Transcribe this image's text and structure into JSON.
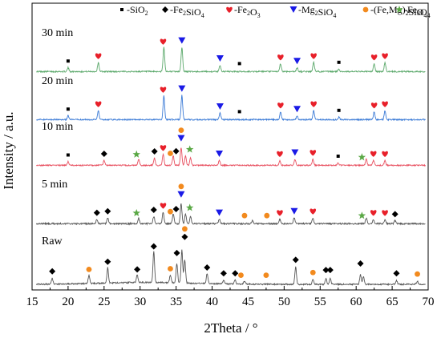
{
  "chart_data": {
    "type": "line",
    "title": "",
    "xlabel": "2Theta / °",
    "ylabel": "Intensity / a.u.",
    "xlim": [
      15,
      70
    ],
    "xticks": [
      15,
      20,
      25,
      30,
      35,
      40,
      45,
      50,
      55,
      60,
      65,
      70
    ],
    "grid": false,
    "legend": {
      "position": "top",
      "entries": [
        {
          "phase": "SiO2",
          "marker": "square",
          "color": "#000000",
          "label_pre": "-SiO",
          "sub": "2",
          "label_post": ""
        },
        {
          "phase": "Fe2SiO4",
          "marker": "diamond",
          "color": "#000000",
          "label_pre": "-Fe",
          "sub": "2",
          "label_post": "SiO",
          "sub2": "4"
        },
        {
          "phase": "Fe2O3",
          "marker": "heart",
          "color": "#e8202a",
          "label_pre": "-Fe",
          "sub": "2",
          "label_post": "O",
          "sub2": "3"
        },
        {
          "phase": "Mg2SiO4",
          "marker": "triangle-down",
          "color": "#1a1ae6",
          "label_pre": "-Mg",
          "sub": "2",
          "label_post": "SiO",
          "sub2": "4"
        },
        {
          "phase": "(Fe,Mg)2SiO4",
          "marker": "circle",
          "color": "#f28a1e",
          "label_pre": "-(Fe,Mg)",
          "sub": "2",
          "label_post": "SiO",
          "sub2": "4"
        },
        {
          "phase": "Fe3O4",
          "marker": "star",
          "color": "#5aa845",
          "label_pre": "-Fe",
          "sub": "3",
          "label_post": "O",
          "sub2": "4"
        }
      ]
    },
    "series": [
      {
        "name": "30 min",
        "color": "#5aa86a",
        "peaks": [
          [
            20.0,
            0.15
          ],
          [
            24.2,
            0.35
          ],
          [
            33.3,
            0.95
          ],
          [
            35.8,
            0.95
          ],
          [
            41.1,
            0.25
          ],
          [
            49.5,
            0.3
          ],
          [
            51.8,
            0.15
          ],
          [
            54.1,
            0.35
          ],
          [
            57.6,
            0.1
          ],
          [
            62.5,
            0.3
          ],
          [
            64.0,
            0.35
          ]
        ],
        "markers": [
          {
            "phase": "SiO2",
            "x": 20.0
          },
          {
            "phase": "Fe2O3",
            "x": 24.2
          },
          {
            "phase": "Fe2O3",
            "x": 33.2
          },
          {
            "phase": "Mg2SiO4",
            "x": 35.8
          },
          {
            "phase": "Mg2SiO4",
            "x": 41.1
          },
          {
            "phase": "SiO2",
            "x": 43.8
          },
          {
            "phase": "Fe2O3",
            "x": 49.5
          },
          {
            "phase": "Mg2SiO4",
            "x": 51.8
          },
          {
            "phase": "Fe2O3",
            "x": 54.1
          },
          {
            "phase": "SiO2",
            "x": 57.6
          },
          {
            "phase": "Fe2O3",
            "x": 62.5
          },
          {
            "phase": "Fe2O3",
            "x": 64.0
          }
        ]
      },
      {
        "name": "20 min",
        "color": "#3a7ad6",
        "peaks": [
          [
            20.0,
            0.15
          ],
          [
            24.2,
            0.35
          ],
          [
            33.3,
            0.95
          ],
          [
            35.8,
            0.95
          ],
          [
            41.1,
            0.25
          ],
          [
            49.5,
            0.3
          ],
          [
            51.8,
            0.15
          ],
          [
            54.1,
            0.35
          ],
          [
            57.6,
            0.1
          ],
          [
            62.5,
            0.3
          ],
          [
            64.0,
            0.35
          ]
        ],
        "markers": [
          {
            "phase": "SiO2",
            "x": 20.0
          },
          {
            "phase": "Fe2O3",
            "x": 24.2
          },
          {
            "phase": "Fe2O3",
            "x": 33.2
          },
          {
            "phase": "Mg2SiO4",
            "x": 35.8
          },
          {
            "phase": "Mg2SiO4",
            "x": 41.1
          },
          {
            "phase": "SiO2",
            "x": 43.8
          },
          {
            "phase": "Fe2O3",
            "x": 49.5
          },
          {
            "phase": "Mg2SiO4",
            "x": 51.8
          },
          {
            "phase": "Fe2O3",
            "x": 54.1
          },
          {
            "phase": "SiO2",
            "x": 57.6
          },
          {
            "phase": "Fe2O3",
            "x": 62.5
          },
          {
            "phase": "Fe2O3",
            "x": 64.0
          }
        ]
      },
      {
        "name": "10 min",
        "color": "#e85060",
        "peaks": [
          [
            20.0,
            0.15
          ],
          [
            25.0,
            0.2
          ],
          [
            29.8,
            0.25
          ],
          [
            32.0,
            0.3
          ],
          [
            33.2,
            0.45
          ],
          [
            34.6,
            0.4
          ],
          [
            35.7,
            0.75
          ],
          [
            36.3,
            0.4
          ],
          [
            37.0,
            0.3
          ],
          [
            41.0,
            0.2
          ],
          [
            49.4,
            0.2
          ],
          [
            51.5,
            0.25
          ],
          [
            54.0,
            0.25
          ],
          [
            57.5,
            0.1
          ],
          [
            61.4,
            0.25
          ],
          [
            62.4,
            0.2
          ],
          [
            64.0,
            0.2
          ]
        ],
        "markers": [
          {
            "phase": "SiO2",
            "x": 20.0
          },
          {
            "phase": "Fe2SiO4",
            "x": 25.0
          },
          {
            "phase": "Fe3O4",
            "x": 29.5
          },
          {
            "phase": "Fe2SiO4",
            "x": 32.0
          },
          {
            "phase": "Fe2O3",
            "x": 33.2
          },
          {
            "phase": "(Fe,Mg)2SiO4",
            "x": 34.2
          },
          {
            "phase": "Fe2SiO4",
            "x": 35.0
          },
          {
            "phase": "Mg2SiO4",
            "x": 35.7
          },
          {
            "phase": "(Fe,Mg)2SiO4",
            "x": 35.7
          },
          {
            "phase": "Fe3O4",
            "x": 36.9
          },
          {
            "phase": "Mg2SiO4",
            "x": 41.0
          },
          {
            "phase": "Fe2O3",
            "x": 49.4
          },
          {
            "phase": "Mg2SiO4",
            "x": 51.5
          },
          {
            "phase": "Fe2O3",
            "x": 54.0
          },
          {
            "phase": "SiO2",
            "x": 57.5
          },
          {
            "phase": "Fe3O4",
            "x": 60.8
          },
          {
            "phase": "Fe2O3",
            "x": 62.4
          },
          {
            "phase": "Fe2O3",
            "x": 64.0
          }
        ]
      },
      {
        "name": "5 min",
        "color": "#555555",
        "peaks": [
          [
            24.0,
            0.15
          ],
          [
            25.5,
            0.2
          ],
          [
            29.8,
            0.2
          ],
          [
            31.9,
            0.25
          ],
          [
            33.2,
            0.4
          ],
          [
            34.6,
            0.35
          ],
          [
            35.7,
            0.7
          ],
          [
            36.3,
            0.35
          ],
          [
            37.0,
            0.25
          ],
          [
            41.0,
            0.15
          ],
          [
            45.6,
            0.1
          ],
          [
            49.4,
            0.15
          ],
          [
            51.4,
            0.2
          ],
          [
            54.0,
            0.2
          ],
          [
            61.4,
            0.2
          ],
          [
            62.4,
            0.15
          ],
          [
            64.0,
            0.15
          ],
          [
            65.4,
            0.1
          ]
        ],
        "markers": [
          {
            "phase": "Fe2SiO4",
            "x": 24.0
          },
          {
            "phase": "Fe2SiO4",
            "x": 25.5
          },
          {
            "phase": "Fe3O4",
            "x": 29.5
          },
          {
            "phase": "Fe2SiO4",
            "x": 31.9
          },
          {
            "phase": "Fe2O3",
            "x": 33.2
          },
          {
            "phase": "(Fe,Mg)2SiO4",
            "x": 34.2
          },
          {
            "phase": "Fe2SiO4",
            "x": 35.0
          },
          {
            "phase": "Mg2SiO4",
            "x": 35.7
          },
          {
            "phase": "(Fe,Mg)2SiO4",
            "x": 35.7
          },
          {
            "phase": "Fe3O4",
            "x": 36.9
          },
          {
            "phase": "Mg2SiO4",
            "x": 41.0
          },
          {
            "phase": "(Fe,Mg)2SiO4",
            "x": 44.5
          },
          {
            "phase": "(Fe,Mg)2SiO4",
            "x": 47.6
          },
          {
            "phase": "Fe2O3",
            "x": 49.4
          },
          {
            "phase": "Mg2SiO4",
            "x": 51.4
          },
          {
            "phase": "Fe2O3",
            "x": 54.0
          },
          {
            "phase": "Fe3O4",
            "x": 60.8
          },
          {
            "phase": "Fe2O3",
            "x": 62.4
          },
          {
            "phase": "Fe2O3",
            "x": 64.0
          },
          {
            "phase": "Fe2SiO4",
            "x": 65.4
          }
        ]
      },
      {
        "name": "Raw",
        "color": "#555555",
        "peaks": [
          [
            17.8,
            0.15
          ],
          [
            22.9,
            0.2
          ],
          [
            25.5,
            0.4
          ],
          [
            29.6,
            0.2
          ],
          [
            31.9,
            0.8
          ],
          [
            34.2,
            0.2
          ],
          [
            35.1,
            0.5
          ],
          [
            35.8,
            0.85
          ],
          [
            36.2,
            0.6
          ],
          [
            39.3,
            0.25
          ],
          [
            41.6,
            0.1
          ],
          [
            43.2,
            0.1
          ],
          [
            44.5,
            0.08
          ],
          [
            51.6,
            0.45
          ],
          [
            54.0,
            0.12
          ],
          [
            55.8,
            0.15
          ],
          [
            56.4,
            0.15
          ],
          [
            60.6,
            0.25
          ],
          [
            61.0,
            0.2
          ],
          [
            65.6,
            0.1
          ],
          [
            68.5,
            0.08
          ]
        ],
        "markers": [
          {
            "phase": "Fe2SiO4",
            "x": 17.8
          },
          {
            "phase": "(Fe,Mg)2SiO4",
            "x": 22.9
          },
          {
            "phase": "Fe2SiO4",
            "x": 25.5
          },
          {
            "phase": "Fe2SiO4",
            "x": 29.6
          },
          {
            "phase": "Fe2SiO4",
            "x": 31.9
          },
          {
            "phase": "(Fe,Mg)2SiO4",
            "x": 34.2
          },
          {
            "phase": "Fe2SiO4",
            "x": 35.1
          },
          {
            "phase": "Fe2SiO4",
            "x": 36.2
          },
          {
            "phase": "(Fe,Mg)2SiO4",
            "x": 36.2
          },
          {
            "phase": "Fe2SiO4",
            "x": 39.3
          },
          {
            "phase": "Fe2SiO4",
            "x": 41.6
          },
          {
            "phase": "Fe2SiO4",
            "x": 43.2
          },
          {
            "phase": "(Fe,Mg)2SiO4",
            "x": 44.0
          },
          {
            "phase": "(Fe,Mg)2SiO4",
            "x": 47.5
          },
          {
            "phase": "Fe2SiO4",
            "x": 51.6
          },
          {
            "phase": "(Fe,Mg)2SiO4",
            "x": 54.0
          },
          {
            "phase": "Fe2SiO4",
            "x": 55.8
          },
          {
            "phase": "Fe2SiO4",
            "x": 56.4
          },
          {
            "phase": "Fe2SiO4",
            "x": 60.6
          },
          {
            "phase": "Fe2SiO4",
            "x": 65.6
          },
          {
            "phase": "(Fe,Mg)2SiO4",
            "x": 68.5
          }
        ]
      }
    ]
  }
}
